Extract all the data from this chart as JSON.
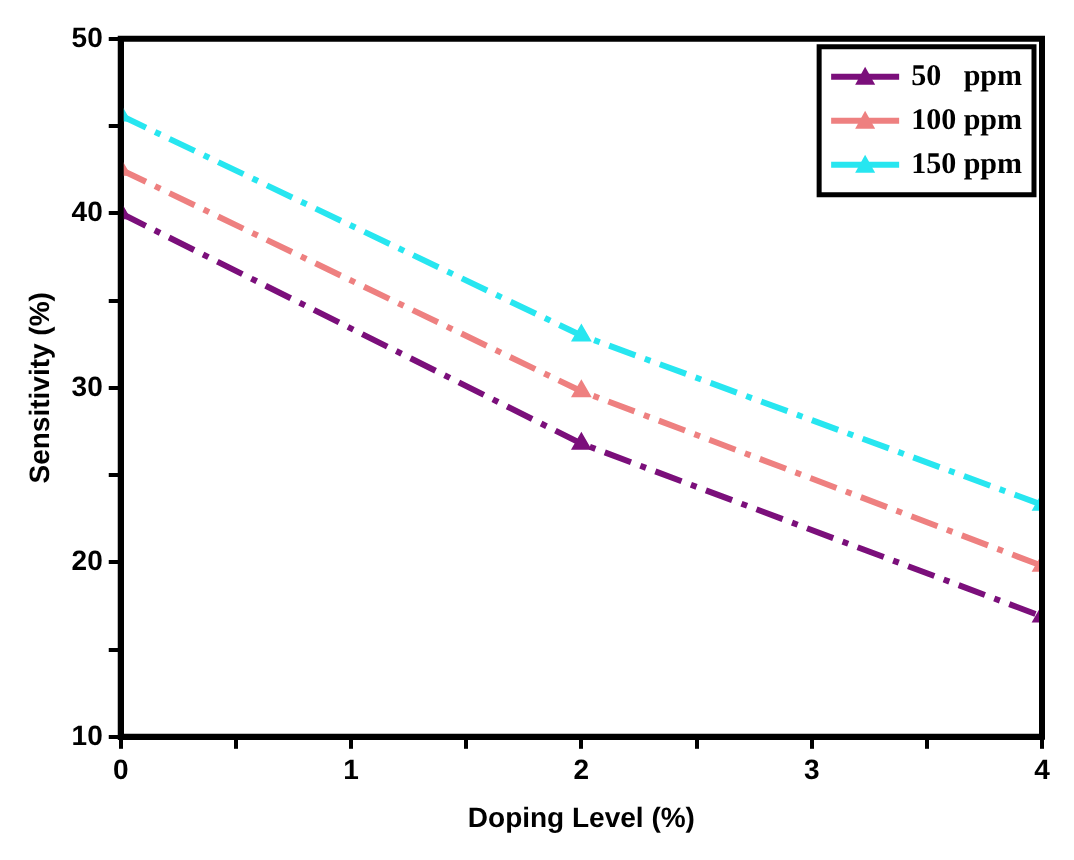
{
  "chart_data": {
    "type": "line",
    "xlabel": "Doping Level (%)",
    "ylabel": "Sensitivity (%)",
    "x": [
      0,
      2,
      4
    ],
    "series": [
      {
        "name": "50   ppm",
        "color": "#7b0f7b",
        "values": [
          40,
          26.8,
          16.9
        ]
      },
      {
        "name": "100 ppm",
        "color": "#ee8080",
        "values": [
          42.5,
          29.8,
          19.8
        ]
      },
      {
        "name": "150 ppm",
        "color": "#27e6f0",
        "values": [
          45.6,
          33.0,
          23.3
        ]
      }
    ],
    "xlim": [
      0,
      4
    ],
    "xticks": [
      0,
      {
        "value": 0.5,
        "label": null
      },
      1,
      {
        "value": 1.5,
        "label": null
      },
      2,
      {
        "value": 2.5,
        "label": null
      },
      3,
      {
        "value": 3.5,
        "label": null
      },
      4
    ],
    "ylim": [
      10,
      50
    ],
    "yticks": [
      10,
      {
        "value": 15,
        "label": null
      },
      20,
      {
        "value": 25,
        "label": null
      },
      30,
      {
        "value": 35,
        "label": null
      },
      40,
      {
        "value": 45,
        "label": null
      },
      50
    ],
    "grid": false,
    "legend": "top right",
    "marker": "triangle",
    "line_style": "dashed"
  }
}
